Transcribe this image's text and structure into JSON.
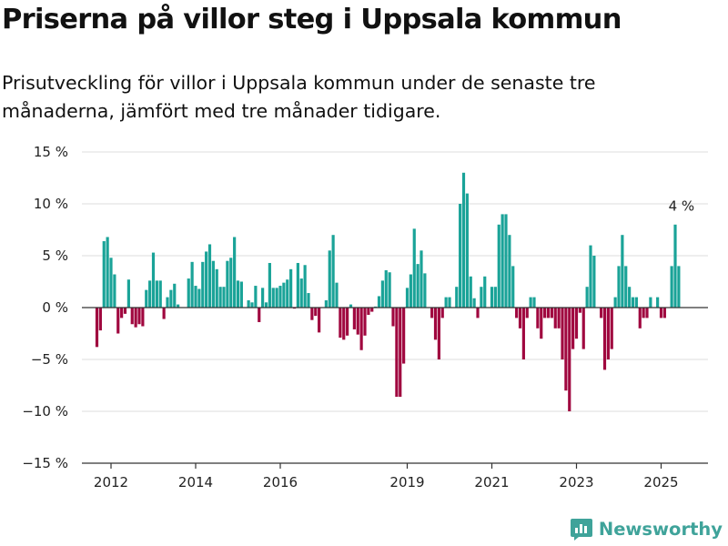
{
  "title": "Priserna på villor steg i Uppsala kommun",
  "subtitle": "Prisutveckling för villor i Uppsala kommun under de senaste tre månaderna, jämfört med tre månader tidigare.",
  "brand": "Newsworthy",
  "colors": {
    "positive": "#1aa398",
    "negative": "#a0073f",
    "grid": "#dddddd",
    "zero": "#333333",
    "logo": "#3fa39a"
  },
  "chart_data": {
    "type": "bar",
    "start": "2011-09",
    "ylim": [
      -15,
      15
    ],
    "yticks": [
      15,
      10,
      5,
      0,
      -5,
      -10,
      -15
    ],
    "ytick_labels": [
      "15 %",
      "10 %",
      "5 %",
      "0 %",
      "−5 %",
      "−10 %",
      "−15 %"
    ],
    "xtick_labels": [
      "2012",
      "2014",
      "2016",
      "2019",
      "2021",
      "2023",
      "2025"
    ],
    "annotation": "4 %",
    "values": [
      -3.8,
      -2.2,
      6.4,
      6.8,
      4.8,
      3.2,
      -2.5,
      -1.0,
      -0.6,
      2.7,
      -1.6,
      -1.9,
      -1.6,
      -1.8,
      1.7,
      2.6,
      5.3,
      2.6,
      2.6,
      -1.1,
      1.0,
      1.7,
      2.3,
      0.3,
      0,
      0,
      2.8,
      4.4,
      2.1,
      1.8,
      4.4,
      5.4,
      6.1,
      4.5,
      3.7,
      2.0,
      2.0,
      4.5,
      4.8,
      6.8,
      2.6,
      2.5,
      0,
      0.7,
      0.5,
      2.1,
      -1.4,
      1.9,
      0.5,
      4.3,
      1.9,
      1.9,
      2.1,
      2.4,
      2.7,
      3.7,
      -0.1,
      4.3,
      2.8,
      4.1,
      1.4,
      -1.2,
      -0.8,
      -2.4,
      0,
      0.7,
      5.5,
      7.0,
      2.4,
      -2.9,
      -3.1,
      -2.7,
      0.3,
      -2.1,
      -2.6,
      -4.1,
      -2.7,
      -0.7,
      -0.4,
      0.1,
      1.1,
      2.6,
      3.6,
      3.4,
      -1.8,
      -8.6,
      -8.6,
      -5.4,
      1.9,
      3.2,
      7.6,
      4.2,
      5.5,
      3.3,
      0,
      -1.0,
      -3.1,
      -5.0,
      -1.0,
      1.0,
      1.0,
      0,
      2.0,
      10.0,
      13.0,
      11.0,
      3.0,
      0.9,
      -1.0,
      2.0,
      3.0,
      0,
      2.0,
      2.0,
      8.0,
      9.0,
      9.0,
      7.0,
      4.0,
      -1.0,
      -2.0,
      -5.0,
      -1.0,
      1.0,
      1.0,
      -2.0,
      -3.0,
      -1.0,
      -1.0,
      -1.0,
      -2.0,
      -2.0,
      -5.0,
      -8.0,
      -10.0,
      -4.0,
      -3.0,
      -0.5,
      -4.0,
      2.0,
      6.0,
      5.0,
      0,
      -1.0,
      -6.0,
      -5.0,
      -4.0,
      1.0,
      4.0,
      7.0,
      4.0,
      2.0,
      1.0,
      1.0,
      -2.0,
      -1.0,
      -1.0,
      1.0,
      0,
      1.0,
      -1.0,
      -1.0,
      0,
      4.0,
      8.0,
      4.0
    ]
  }
}
